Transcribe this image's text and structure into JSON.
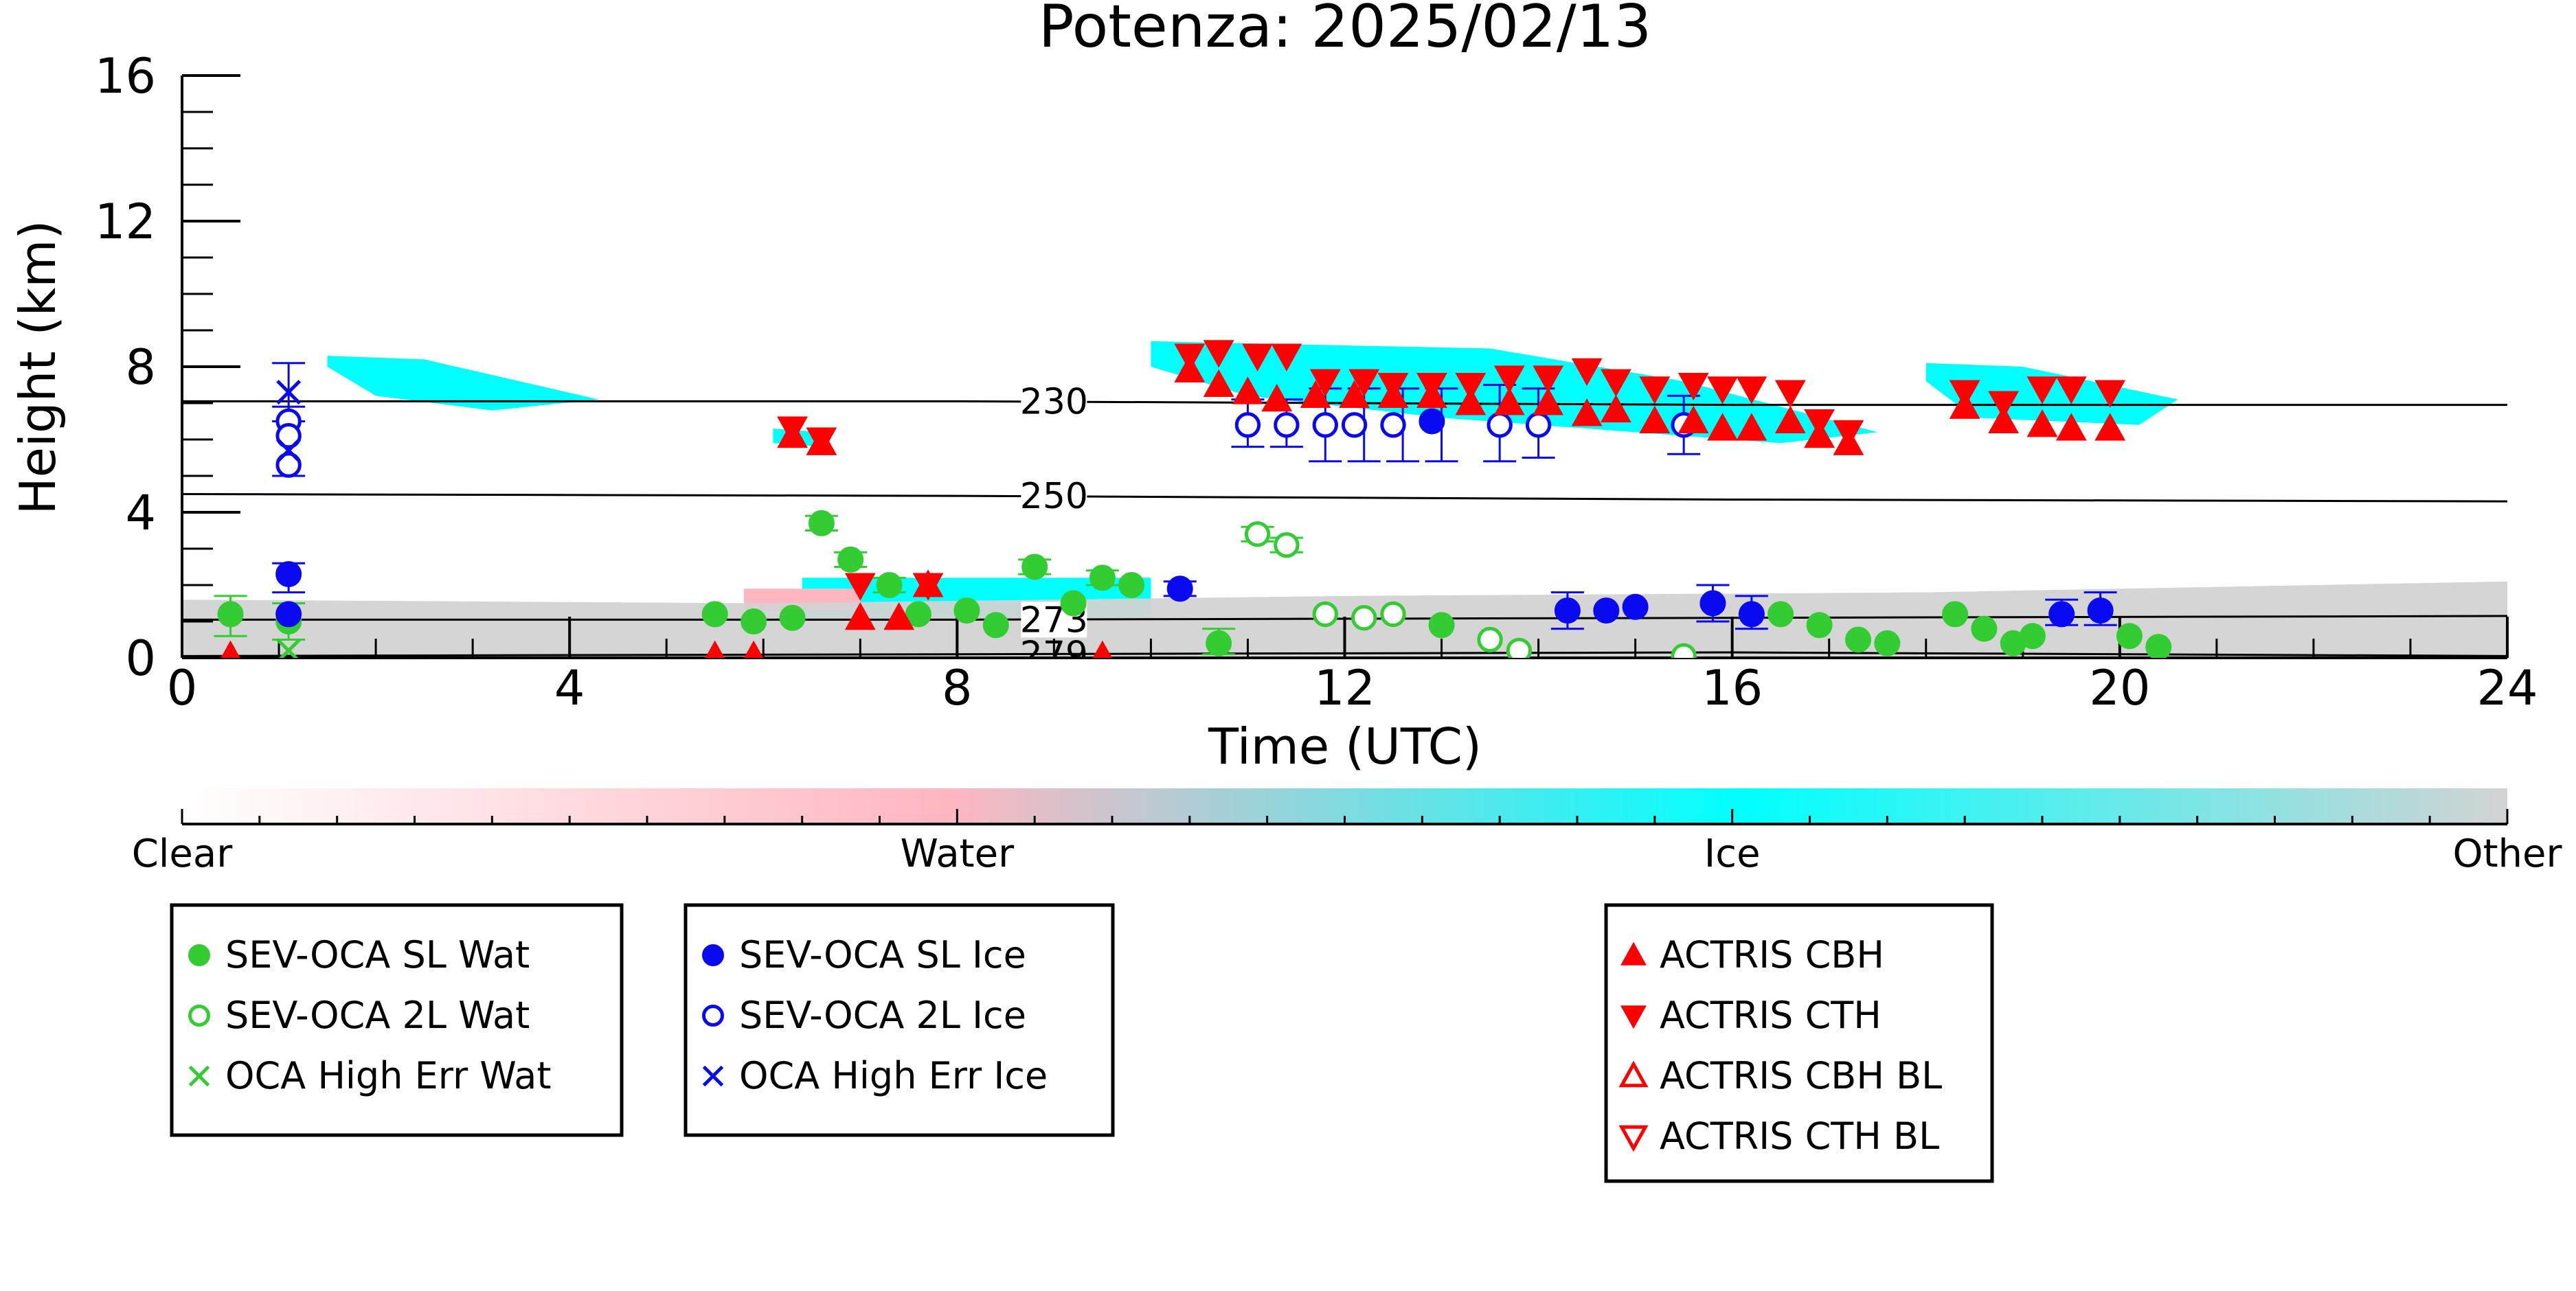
{
  "chart_data": {
    "type": "scatter",
    "title": "Potenza: 2025/02/13",
    "xlabel": "Time (UTC)",
    "ylabel": "Height (km)",
    "xlim": [
      0,
      24
    ],
    "ylim": [
      0,
      16
    ],
    "xticks": [
      0,
      4,
      8,
      12,
      16,
      20,
      24
    ],
    "yticks": [
      0,
      4,
      8,
      12,
      16
    ],
    "grid": false,
    "background_class_scale": {
      "labels": [
        "Clear",
        "Water",
        "Ice",
        "Other"
      ],
      "colors": [
        "#ffffff",
        "#ffb6c1",
        "#00ffff",
        "#d3d3d3"
      ]
    },
    "contours": [
      {
        "label": "230",
        "y": [
          7.05,
          7.05,
          6.95,
          6.95
        ]
      },
      {
        "label": "250",
        "y": [
          4.5,
          4.45,
          4.35,
          4.3
        ]
      },
      {
        "label": "273",
        "y": [
          1.05,
          1.05,
          1.1,
          1.15
        ]
      },
      {
        "label": "279",
        "y": [
          0.05,
          0.1,
          0.15,
          0.05
        ]
      }
    ],
    "contour_x": [
      0,
      8,
      16,
      24
    ],
    "cloud_regions": [
      {
        "class": "Ice",
        "x": [
          1.5,
          2.5,
          4.3,
          3.2,
          2.0,
          1.5
        ],
        "y": [
          8.3,
          8.2,
          7.1,
          6.8,
          7.2,
          8.0
        ]
      },
      {
        "class": "Ice",
        "x": [
          6.1,
          6.6,
          6.6,
          6.1
        ],
        "y": [
          6.3,
          6.2,
          5.8,
          5.9
        ]
      },
      {
        "class": "Ice",
        "x": [
          10.0,
          13.5,
          15.5,
          17.5,
          16.5,
          13.0,
          11.0,
          10.0
        ],
        "y": [
          8.7,
          8.5,
          7.6,
          6.2,
          5.9,
          6.6,
          7.2,
          8.0
        ]
      },
      {
        "class": "Ice",
        "x": [
          18.0,
          19.0,
          20.6,
          20.2,
          18.5,
          18.0
        ],
        "y": [
          8.1,
          8.0,
          7.1,
          6.4,
          6.6,
          7.6
        ]
      },
      {
        "class": "Ice",
        "x": [
          6.4,
          10.0,
          10.0,
          6.4
        ],
        "y": [
          2.2,
          2.2,
          1.1,
          1.1
        ]
      },
      {
        "class": "Water",
        "x": [
          5.8,
          7.0,
          7.0,
          5.8
        ],
        "y": [
          1.9,
          1.9,
          1.3,
          1.3
        ]
      },
      {
        "class": "Other",
        "x": [
          0,
          6,
          12,
          18,
          24,
          24,
          0
        ],
        "y": [
          1.6,
          1.5,
          1.7,
          1.8,
          2.1,
          0,
          0
        ]
      }
    ],
    "series": [
      {
        "name": "SEV-OCA SL Wat",
        "marker": "circle-filled",
        "color": "#33cc33",
        "x": [
          0.5,
          1.1,
          5.5,
          5.9,
          6.3,
          6.6,
          6.9,
          7.3,
          7.6,
          8.1,
          8.4,
          8.8,
          9.2,
          9.5,
          9.8,
          10.7,
          13.0,
          16.5,
          16.9,
          17.3,
          17.6,
          18.3,
          18.6,
          18.9,
          19.1,
          20.1,
          20.4
        ],
        "y": [
          1.2,
          1.0,
          1.2,
          1.0,
          1.1,
          3.7,
          2.7,
          2.0,
          1.2,
          1.3,
          0.9,
          2.5,
          1.5,
          2.2,
          2.0,
          0.4,
          0.9,
          1.2,
          0.9,
          0.5,
          0.4,
          1.2,
          0.8,
          0.4,
          0.6,
          0.6,
          0.3
        ]
      },
      {
        "name": "SEV-OCA 2L Wat",
        "marker": "circle-open",
        "color": "#33cc33",
        "x": [
          11.1,
          11.4,
          11.8,
          12.2,
          12.5,
          13.5,
          13.8,
          15.5
        ],
        "y": [
          3.4,
          3.1,
          1.2,
          1.1,
          1.2,
          0.5,
          0.2,
          0.05
        ]
      },
      {
        "name": "OCA High Err Wat",
        "marker": "x",
        "color": "#33cc33",
        "x": [
          1.1
        ],
        "y": [
          0.2
        ]
      },
      {
        "name": "SEV-OCA SL Ice",
        "marker": "circle-filled",
        "color": "#0a0af0",
        "x": [
          1.1,
          1.1,
          10.3,
          12.9,
          14.3,
          14.7,
          15.0,
          15.8,
          16.2,
          19.4,
          19.8
        ],
        "y": [
          2.3,
          1.2,
          1.9,
          6.5,
          1.3,
          1.3,
          1.4,
          1.5,
          1.2,
          1.2,
          1.3
        ]
      },
      {
        "name": "SEV-OCA 2L Ice",
        "marker": "circle-open",
        "color": "#0a0af0",
        "x": [
          1.1,
          1.1,
          1.1,
          11.0,
          11.4,
          11.8,
          12.1,
          12.5,
          13.6,
          14.0,
          15.5
        ],
        "y": [
          6.5,
          6.1,
          5.3,
          6.4,
          6.4,
          6.4,
          6.4,
          6.4,
          6.4,
          6.4,
          6.4
        ]
      },
      {
        "name": "OCA High Err Ice",
        "marker": "x",
        "color": "#0a0af0",
        "x": [
          1.1,
          1.1
        ],
        "y": [
          7.3,
          5.7
        ]
      },
      {
        "name": "ACTRIS CBH",
        "marker": "triangle-up-filled",
        "color": "#ff0000",
        "x": [
          0.5,
          5.5,
          5.9,
          6.3,
          6.6,
          7.0,
          7.4,
          7.7,
          9.5,
          10.4,
          10.7,
          11.0,
          11.3,
          11.7,
          12.1,
          12.5,
          12.9,
          13.3,
          13.7,
          14.1,
          14.5,
          14.8,
          15.2,
          15.6,
          15.9,
          16.2,
          16.6,
          16.9,
          17.2,
          18.4,
          18.8,
          19.2,
          19.5,
          19.9
        ],
        "y": [
          0.05,
          0.05,
          0.05,
          6.1,
          5.9,
          1.1,
          1.1,
          2.0,
          0.05,
          7.9,
          7.5,
          7.3,
          7.1,
          7.2,
          7.2,
          7.2,
          7.2,
          7.0,
          7.0,
          7.0,
          6.7,
          6.8,
          6.5,
          6.5,
          6.3,
          6.3,
          6.5,
          6.1,
          5.9,
          6.9,
          6.5,
          6.4,
          6.3,
          6.3
        ]
      },
      {
        "name": "ACTRIS CTH",
        "marker": "triangle-down-filled",
        "color": "#ff0000",
        "x": [
          6.3,
          6.6,
          7.0,
          7.7,
          10.4,
          10.7,
          11.1,
          11.4,
          11.8,
          12.2,
          12.5,
          12.9,
          13.3,
          13.7,
          14.1,
          14.5,
          14.8,
          15.2,
          15.6,
          15.9,
          16.2,
          16.6,
          16.9,
          17.2,
          18.4,
          18.8,
          19.2,
          19.5,
          19.9
        ],
        "y": [
          6.3,
          6.0,
          2.0,
          2.0,
          8.3,
          8.4,
          8.3,
          8.3,
          7.6,
          7.6,
          7.5,
          7.5,
          7.5,
          7.7,
          7.7,
          7.9,
          7.6,
          7.4,
          7.5,
          7.4,
          7.4,
          7.3,
          6.5,
          6.2,
          7.3,
          7.0,
          7.4,
          7.4,
          7.3
        ]
      },
      {
        "name": "ACTRIS CBH BL",
        "marker": "triangle-up-open",
        "color": "#ff0000",
        "x": [],
        "y": []
      },
      {
        "name": "ACTRIS CTH BL",
        "marker": "triangle-down-open",
        "color": "#ff0000",
        "x": [],
        "y": []
      }
    ],
    "error_bars": [
      {
        "color": "#0a0af0",
        "x": [
          1.1,
          1.1,
          1.1,
          10.3,
          11.0,
          11.4,
          11.8,
          12.2,
          12.6,
          13.0,
          13.6,
          14.0,
          15.5,
          14.3,
          15.8,
          16.2,
          19.4,
          19.8
        ],
        "ylow": [
          6.5,
          5.0,
          1.8,
          1.7,
          5.8,
          5.8,
          5.4,
          5.4,
          5.4,
          5.4,
          5.4,
          5.5,
          5.6,
          0.8,
          1.0,
          0.8,
          0.9,
          0.9
        ],
        "yhigh": [
          8.1,
          6.9,
          2.6,
          2.1,
          7.1,
          7.1,
          7.4,
          7.4,
          7.4,
          7.4,
          7.5,
          7.4,
          7.2,
          1.8,
          2.0,
          1.7,
          1.6,
          1.8
        ]
      },
      {
        "color": "#33cc33",
        "x": [
          0.5,
          1.1,
          6.6,
          6.9,
          7.3,
          8.8,
          9.5,
          10.7,
          11.1,
          11.4
        ],
        "ylow": [
          0.6,
          0.5,
          3.5,
          2.5,
          1.8,
          2.3,
          2.0,
          0.1,
          3.2,
          2.9
        ],
        "yhigh": [
          1.7,
          1.5,
          3.9,
          2.9,
          2.2,
          2.7,
          2.4,
          0.8,
          3.6,
          3.3
        ]
      }
    ],
    "legend_boxes": [
      {
        "entries": [
          {
            "label": "SEV-OCA SL Wat",
            "marker": "circle-filled",
            "color": "#33cc33"
          },
          {
            "label": "SEV-OCA 2L Wat",
            "marker": "circle-open",
            "color": "#33cc33"
          },
          {
            "label": "OCA High Err Wat",
            "marker": "x",
            "color": "#33cc33"
          }
        ]
      },
      {
        "entries": [
          {
            "label": "SEV-OCA SL Ice",
            "marker": "circle-filled",
            "color": "#0a0af0"
          },
          {
            "label": "SEV-OCA 2L Ice",
            "marker": "circle-open",
            "color": "#0a0af0"
          },
          {
            "label": "OCA High Err Ice",
            "marker": "x",
            "color": "#0a0af0"
          }
        ]
      },
      {
        "entries": [
          {
            "label": "ACTRIS CBH",
            "marker": "triangle-up-filled",
            "color": "#ff0000"
          },
          {
            "label": "ACTRIS CTH",
            "marker": "triangle-down-filled",
            "color": "#ff0000"
          },
          {
            "label": "ACTRIS CBH BL",
            "marker": "triangle-up-open",
            "color": "#ff0000"
          },
          {
            "label": "ACTRIS CTH BL",
            "marker": "triangle-down-open",
            "color": "#ff0000"
          }
        ]
      }
    ]
  }
}
